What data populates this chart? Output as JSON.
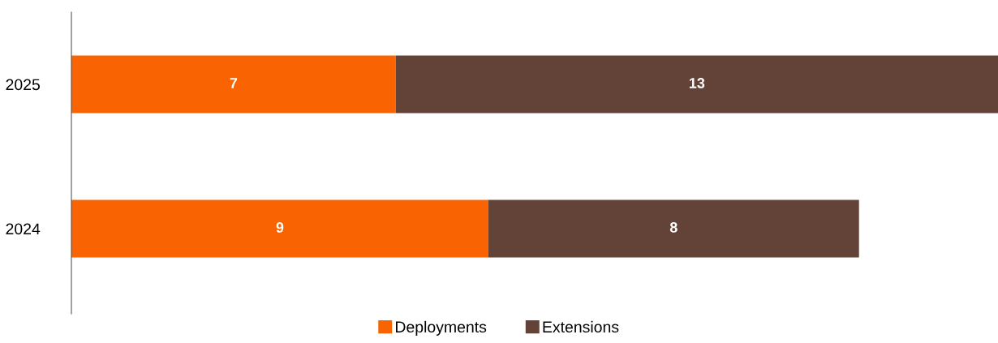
{
  "chart_data": {
    "type": "bar",
    "orientation": "horizontal",
    "stacked": true,
    "categories": [
      "2025",
      "2024"
    ],
    "series": [
      {
        "name": "Deployments",
        "color": "#f96302",
        "values": [
          7,
          9
        ]
      },
      {
        "name": "Extensions",
        "color": "#634337",
        "values": [
          13,
          8
        ]
      }
    ],
    "data_labels": true,
    "legend": "bottom",
    "grid": false,
    "tick_labels": "y"
  }
}
